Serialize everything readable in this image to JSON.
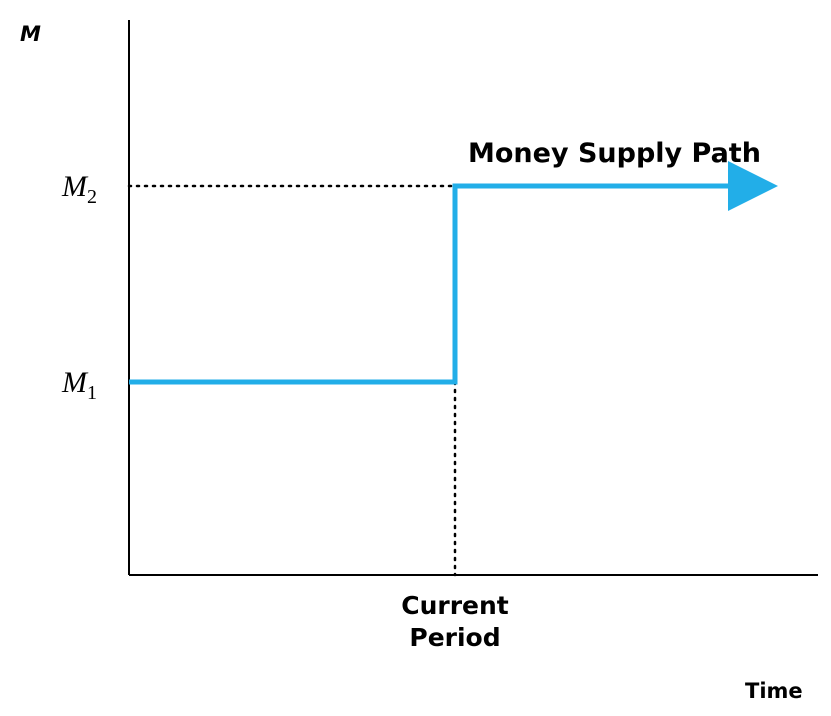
{
  "chart_data": {
    "type": "line",
    "title": "",
    "ylabel": "M",
    "xlabel": "Time",
    "series": [
      {
        "name": "Money Supply Path",
        "points": [
          {
            "x": 0,
            "y": 1
          },
          {
            "x": 1,
            "y": 1
          },
          {
            "x": 1,
            "y": 2
          },
          {
            "x": 2,
            "y": 2
          }
        ],
        "arrowhead": true
      }
    ],
    "y_ticks": [
      {
        "value": 1,
        "label": "M",
        "subscript": "1"
      },
      {
        "value": 2,
        "label": "M",
        "subscript": "2"
      }
    ],
    "x_ticks": [
      {
        "value": 1,
        "label_lines": [
          "Current",
          "Period"
        ]
      }
    ],
    "guides": "dotted",
    "grid": false,
    "colors": {
      "series": "#22aee8",
      "axis": "#000000",
      "guide": "#000000"
    }
  }
}
